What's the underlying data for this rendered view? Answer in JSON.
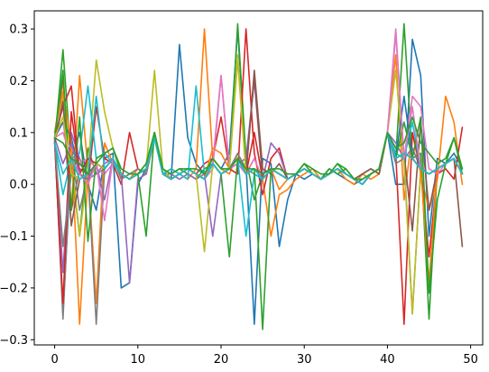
{
  "chart_data": {
    "type": "line",
    "title": "",
    "xlabel": "",
    "ylabel": "",
    "xlim": [
      -2.45,
      51.45
    ],
    "ylim": [
      -0.31,
      0.335
    ],
    "xticks": [
      0,
      10,
      20,
      30,
      40,
      50
    ],
    "yticks": [
      -0.3,
      -0.2,
      -0.1,
      0.0,
      0.1,
      0.2,
      0.3
    ],
    "ytick_labels": [
      "−0.3",
      "−0.2",
      "−0.1",
      "0.0",
      "0.1",
      "0.2",
      "0.3"
    ],
    "legend": "none",
    "grid": false,
    "x": [
      0,
      1,
      2,
      3,
      4,
      5,
      6,
      7,
      8,
      9,
      10,
      11,
      12,
      13,
      14,
      15,
      16,
      17,
      18,
      19,
      20,
      21,
      22,
      23,
      24,
      25,
      26,
      27,
      28,
      29,
      30,
      31,
      32,
      33,
      34,
      35,
      36,
      37,
      38,
      39,
      40,
      41,
      42,
      43,
      44,
      45,
      46,
      47,
      48,
      49
    ],
    "series": [
      {
        "color": "#1f77b4",
        "values": [
          0.09,
          -0.25,
          0.05,
          0.1,
          0.0,
          -0.05,
          0.05,
          0.06,
          -0.2,
          -0.19,
          0.0,
          0.03,
          0.1,
          0.03,
          0.01,
          0.27,
          0.09,
          0.04,
          0.02,
          0.05,
          0.03,
          0.06,
          0.3,
          0.04,
          -0.27,
          0.05,
          0.04,
          -0.12,
          -0.03,
          0.02,
          0.01,
          0.02,
          0.01,
          0.03,
          0.02,
          0.01,
          0.0,
          0.01,
          0.02,
          0.03,
          0.1,
          0.0,
          0.0,
          0.28,
          0.21,
          -0.1,
          0.05,
          0.04,
          0.06,
          0.03
        ]
      },
      {
        "color": "#ff7f0e",
        "values": [
          0.1,
          0.2,
          -0.05,
          0.21,
          0.03,
          -0.23,
          0.08,
          0.04,
          0.02,
          0.01,
          0.03,
          0.02,
          0.09,
          0.02,
          0.03,
          0.02,
          0.01,
          0.03,
          0.3,
          0.05,
          0.03,
          0.02,
          0.06,
          0.02,
          0.05,
          0.01,
          -0.1,
          -0.02,
          -0.01,
          0.01,
          0.02,
          0.03,
          0.01,
          0.02,
          0.03,
          0.01,
          0.0,
          0.02,
          0.01,
          0.02,
          0.1,
          0.25,
          -0.03,
          0.1,
          0.02,
          -0.05,
          0.01,
          0.17,
          0.12,
          0.0
        ]
      },
      {
        "color": "#2ca02c",
        "values": [
          0.08,
          0.26,
          0.04,
          -0.1,
          0.07,
          0.02,
          0.03,
          0.05,
          0.01,
          0.02,
          0.02,
          0.04,
          0.1,
          0.02,
          0.02,
          0.03,
          0.02,
          0.01,
          0.03,
          0.04,
          0.02,
          0.03,
          0.31,
          0.05,
          -0.03,
          0.02,
          0.03,
          0.02,
          0.01,
          0.02,
          0.03,
          0.02,
          0.01,
          0.03,
          0.02,
          0.03,
          0.01,
          0.02,
          0.03,
          0.02,
          0.1,
          0.05,
          0.31,
          0.05,
          0.06,
          -0.26,
          0.03,
          0.04,
          0.05,
          0.02
        ]
      },
      {
        "color": "#d62728",
        "values": [
          0.09,
          0.15,
          0.19,
          0.02,
          0.0,
          0.15,
          0.05,
          0.04,
          0.0,
          0.1,
          0.03,
          0.02,
          0.09,
          0.02,
          0.01,
          0.02,
          0.03,
          0.02,
          0.04,
          0.05,
          0.13,
          0.03,
          0.02,
          0.3,
          0.06,
          -0.02,
          0.05,
          0.07,
          0.01,
          0.02,
          0.03,
          0.02,
          0.01,
          0.02,
          0.03,
          0.02,
          0.01,
          0.0,
          0.02,
          0.03,
          0.1,
          0.06,
          -0.27,
          0.1,
          0.03,
          -0.14,
          0.02,
          0.03,
          0.01,
          0.11
        ]
      },
      {
        "color": "#9467bd",
        "values": [
          0.08,
          -0.17,
          0.1,
          0.05,
          0.01,
          0.02,
          0.04,
          0.05,
          0.02,
          -0.19,
          0.01,
          0.02,
          0.1,
          0.02,
          0.02,
          0.01,
          0.02,
          0.01,
          0.02,
          -0.1,
          0.02,
          0.03,
          0.04,
          0.05,
          0.2,
          0.01,
          0.08,
          0.06,
          0.01,
          0.02,
          0.03,
          0.02,
          0.01,
          0.02,
          0.03,
          0.02,
          0.01,
          0.0,
          0.02,
          0.03,
          0.1,
          0.08,
          0.05,
          0.07,
          0.03,
          0.02,
          0.03,
          0.04,
          0.05,
          0.02
        ]
      },
      {
        "color": "#8c564b",
        "values": [
          0.08,
          0.21,
          -0.05,
          0.03,
          0.02,
          0.04,
          0.03,
          0.05,
          0.02,
          0.01,
          0.02,
          0.03,
          0.09,
          0.02,
          0.01,
          0.02,
          0.03,
          0.02,
          0.01,
          0.04,
          0.02,
          0.03,
          0.05,
          0.02,
          0.22,
          0.03,
          0.02,
          0.04,
          0.01,
          0.02,
          0.03,
          0.02,
          0.01,
          0.02,
          0.03,
          0.02,
          0.01,
          0.02,
          0.03,
          0.02,
          0.1,
          0.05,
          0.06,
          -0.09,
          0.12,
          -0.05,
          0.03,
          0.04,
          0.05,
          -0.12
        ]
      },
      {
        "color": "#e377c2",
        "values": [
          0.09,
          0.12,
          0.02,
          0.04,
          0.05,
          0.03,
          0.02,
          0.04,
          0.02,
          0.01,
          0.02,
          0.03,
          0.09,
          0.02,
          0.01,
          0.02,
          0.03,
          0.02,
          0.01,
          0.03,
          0.21,
          0.03,
          0.04,
          0.02,
          0.05,
          0.01,
          0.03,
          0.02,
          0.01,
          0.02,
          0.03,
          0.02,
          0.01,
          0.02,
          0.03,
          0.02,
          0.01,
          0.0,
          0.02,
          0.03,
          0.1,
          0.3,
          0.05,
          0.17,
          0.15,
          0.03,
          0.02,
          0.04,
          0.05,
          0.02
        ]
      },
      {
        "color": "#7f7f7f",
        "values": [
          0.09,
          -0.26,
          0.07,
          -0.05,
          0.02,
          -0.27,
          0.03,
          0.05,
          0.01,
          0.02,
          0.03,
          0.02,
          0.09,
          0.02,
          0.01,
          0.02,
          0.03,
          0.02,
          0.01,
          0.04,
          0.02,
          0.03,
          0.06,
          0.03,
          0.02,
          0.01,
          0.03,
          0.02,
          0.01,
          0.02,
          0.03,
          0.02,
          0.01,
          0.02,
          0.03,
          0.02,
          0.01,
          0.0,
          0.02,
          0.03,
          0.1,
          0.04,
          0.05,
          -0.25,
          0.03,
          0.02,
          0.03,
          0.04,
          0.05,
          0.02
        ]
      },
      {
        "color": "#bcbd22",
        "values": [
          0.1,
          0.17,
          0.05,
          -0.1,
          0.03,
          0.24,
          0.14,
          0.07,
          0.02,
          0.01,
          0.02,
          0.03,
          0.22,
          0.03,
          0.01,
          0.02,
          0.03,
          0.02,
          -0.13,
          0.04,
          0.02,
          0.03,
          0.25,
          0.02,
          0.03,
          0.01,
          0.03,
          0.02,
          0.01,
          0.02,
          0.03,
          0.02,
          0.01,
          0.02,
          0.03,
          0.02,
          0.01,
          0.0,
          0.02,
          0.03,
          0.1,
          0.22,
          0.04,
          -0.25,
          0.03,
          0.02,
          0.03,
          0.04,
          0.05,
          0.02
        ]
      },
      {
        "color": "#17becf",
        "values": [
          0.08,
          -0.02,
          0.05,
          0.06,
          0.19,
          0.05,
          0.06,
          0.04,
          0.02,
          0.01,
          0.02,
          0.03,
          0.1,
          0.02,
          0.03,
          0.02,
          0.01,
          0.19,
          0.02,
          0.04,
          0.02,
          0.03,
          0.05,
          -0.1,
          0.02,
          0.01,
          0.03,
          0.02,
          0.01,
          0.02,
          0.03,
          0.02,
          0.01,
          0.02,
          0.03,
          0.02,
          0.01,
          0.0,
          0.02,
          0.03,
          0.1,
          0.06,
          0.05,
          0.12,
          0.03,
          0.02,
          0.03,
          0.04,
          0.05,
          0.02
        ]
      },
      {
        "color": "#1f77b4",
        "values": [
          0.09,
          0.12,
          0.09,
          0.02,
          0.01,
          0.04,
          0.03,
          0.05,
          0.02,
          0.01,
          0.02,
          0.03,
          0.09,
          0.02,
          0.01,
          0.02,
          0.03,
          0.02,
          0.01,
          0.04,
          0.02,
          0.03,
          0.05,
          0.02,
          0.03,
          0.01,
          0.03,
          0.02,
          0.01,
          0.02,
          0.03,
          0.02,
          0.01,
          0.02,
          0.03,
          0.02,
          0.01,
          0.0,
          0.02,
          0.03,
          0.1,
          0.05,
          0.17,
          0.05,
          0.03,
          0.02,
          0.03,
          0.04,
          0.05,
          0.02
        ]
      },
      {
        "color": "#ff7f0e",
        "values": [
          0.1,
          0.18,
          0.08,
          -0.27,
          0.02,
          0.04,
          0.03,
          0.05,
          0.02,
          0.01,
          0.02,
          0.03,
          0.09,
          0.02,
          0.01,
          0.02,
          0.03,
          0.02,
          0.01,
          0.07,
          0.06,
          0.03,
          0.05,
          0.02,
          0.03,
          0.01,
          0.03,
          -0.01,
          0.01,
          0.02,
          0.03,
          0.02,
          0.01,
          0.02,
          0.03,
          0.02,
          0.01,
          0.0,
          0.02,
          0.03,
          0.1,
          0.05,
          0.06,
          0.05,
          0.03,
          -0.19,
          0.03,
          0.04,
          0.05,
          0.02
        ]
      },
      {
        "color": "#2ca02c",
        "values": [
          0.09,
          0.22,
          -0.05,
          0.13,
          -0.11,
          0.05,
          0.06,
          0.07,
          0.02,
          0.01,
          0.02,
          -0.1,
          0.1,
          0.02,
          0.01,
          0.02,
          0.03,
          0.02,
          0.01,
          0.04,
          0.02,
          -0.14,
          0.05,
          0.02,
          0.03,
          -0.28,
          0.03,
          0.02,
          0.01,
          0.02,
          0.04,
          0.02,
          0.01,
          0.02,
          0.04,
          0.02,
          0.01,
          0.0,
          0.02,
          0.03,
          0.1,
          0.05,
          0.12,
          0.05,
          0.13,
          -0.21,
          -0.03,
          0.04,
          0.09,
          0.02
        ]
      },
      {
        "color": "#d62728",
        "values": [
          0.08,
          -0.23,
          0.14,
          0.02,
          0.05,
          0.04,
          0.03,
          0.05,
          0.02,
          0.01,
          0.02,
          0.03,
          0.09,
          0.02,
          0.01,
          0.02,
          0.03,
          0.02,
          0.01,
          0.04,
          0.02,
          0.03,
          0.05,
          0.02,
          0.1,
          0.01,
          0.03,
          0.02,
          0.01,
          0.02,
          0.03,
          0.02,
          0.01,
          0.02,
          0.03,
          0.02,
          0.01,
          0.0,
          0.02,
          0.03,
          0.1,
          0.05,
          0.06,
          0.05,
          0.03,
          0.02,
          0.03,
          0.04,
          0.05,
          0.02
        ]
      },
      {
        "color": "#9467bd",
        "values": [
          0.09,
          0.04,
          0.08,
          0.02,
          0.01,
          0.04,
          -0.03,
          0.05,
          0.02,
          0.01,
          0.02,
          0.03,
          0.09,
          0.02,
          0.01,
          0.02,
          0.03,
          0.02,
          0.01,
          0.04,
          0.02,
          0.03,
          0.05,
          0.02,
          0.03,
          0.01,
          0.03,
          0.02,
          0.01,
          0.02,
          0.03,
          0.02,
          0.01,
          0.02,
          0.03,
          0.02,
          0.01,
          0.0,
          0.02,
          0.03,
          0.1,
          0.05,
          0.06,
          0.05,
          0.03,
          0.02,
          0.03,
          0.04,
          0.05,
          0.02
        ]
      },
      {
        "color": "#8c564b",
        "values": [
          0.08,
          0.16,
          -0.08,
          0.01,
          0.02,
          0.04,
          0.03,
          0.05,
          0.02,
          0.01,
          0.02,
          0.03,
          0.09,
          0.02,
          0.01,
          0.02,
          0.03,
          0.02,
          0.01,
          0.04,
          0.02,
          0.03,
          0.05,
          0.02,
          0.21,
          0.01,
          0.03,
          0.02,
          0.01,
          0.02,
          0.03,
          0.02,
          0.01,
          0.02,
          0.03,
          0.02,
          0.01,
          0.0,
          0.02,
          0.03,
          0.1,
          0.05,
          0.06,
          0.05,
          0.03,
          0.02,
          0.03,
          0.04,
          0.05,
          0.02
        ]
      },
      {
        "color": "#e377c2",
        "values": [
          0.09,
          0.1,
          0.05,
          0.02,
          0.0,
          0.04,
          -0.07,
          0.05,
          0.02,
          0.01,
          0.02,
          0.03,
          0.09,
          0.02,
          0.01,
          0.02,
          0.03,
          0.02,
          0.01,
          0.04,
          0.21,
          0.03,
          0.05,
          0.02,
          0.03,
          0.01,
          0.03,
          0.02,
          0.01,
          0.02,
          0.03,
          0.02,
          0.01,
          0.02,
          0.03,
          0.02,
          0.01,
          0.0,
          0.02,
          0.03,
          0.1,
          0.29,
          0.05,
          0.15,
          0.03,
          0.02,
          0.03,
          0.04,
          0.05,
          0.02
        ]
      },
      {
        "color": "#7f7f7f",
        "values": [
          0.08,
          -0.12,
          0.02,
          0.01,
          0.02,
          0.04,
          0.03,
          0.05,
          0.02,
          0.01,
          0.02,
          0.03,
          0.09,
          0.02,
          0.01,
          0.02,
          0.03,
          0.02,
          0.01,
          0.04,
          0.02,
          0.03,
          0.05,
          0.02,
          0.03,
          0.01,
          0.03,
          0.02,
          0.01,
          0.02,
          0.03,
          0.02,
          0.01,
          0.02,
          0.03,
          0.02,
          0.01,
          0.0,
          0.02,
          0.03,
          0.1,
          0.05,
          0.06,
          0.05,
          0.03,
          0.02,
          0.03,
          0.04,
          0.05,
          0.02
        ]
      },
      {
        "color": "#bcbd22",
        "values": [
          0.09,
          0.13,
          0.02,
          0.01,
          0.02,
          0.04,
          0.03,
          0.05,
          0.02,
          0.01,
          0.02,
          0.03,
          0.09,
          0.02,
          0.01,
          0.02,
          0.03,
          0.02,
          0.01,
          0.04,
          0.02,
          0.03,
          0.24,
          0.02,
          0.03,
          0.01,
          0.03,
          0.02,
          0.01,
          0.02,
          0.03,
          0.02,
          0.01,
          0.02,
          0.03,
          0.02,
          0.01,
          0.0,
          0.02,
          0.03,
          0.1,
          0.05,
          0.06,
          0.05,
          0.03,
          0.02,
          0.03,
          0.04,
          0.05,
          0.02
        ]
      },
      {
        "color": "#17becf",
        "values": [
          0.08,
          0.02,
          0.05,
          0.01,
          0.02,
          0.17,
          0.03,
          0.05,
          0.02,
          0.01,
          0.02,
          0.03,
          0.09,
          0.02,
          0.01,
          0.02,
          0.03,
          0.02,
          0.01,
          0.04,
          0.02,
          0.03,
          0.05,
          0.02,
          0.03,
          0.01,
          0.03,
          0.02,
          0.01,
          0.02,
          0.03,
          0.02,
          0.01,
          0.02,
          0.03,
          0.02,
          0.01,
          0.0,
          0.02,
          0.03,
          0.1,
          0.05,
          0.06,
          0.05,
          0.03,
          0.02,
          0.03,
          0.04,
          0.05,
          0.02
        ]
      },
      {
        "color": "#2ca02c",
        "values": [
          0.09,
          0.08,
          0.05,
          0.04,
          0.02,
          0.04,
          0.06,
          0.07,
          0.03,
          0.02,
          0.02,
          0.04,
          0.1,
          0.03,
          0.02,
          0.03,
          0.03,
          0.03,
          0.02,
          0.05,
          0.03,
          0.03,
          0.05,
          0.03,
          0.03,
          0.02,
          0.03,
          0.03,
          0.02,
          0.02,
          0.04,
          0.03,
          0.02,
          0.02,
          0.04,
          0.03,
          0.01,
          0.01,
          0.02,
          0.03,
          0.1,
          0.07,
          0.08,
          0.13,
          0.08,
          0.06,
          0.04,
          0.05,
          0.09,
          0.03
        ]
      }
    ]
  }
}
